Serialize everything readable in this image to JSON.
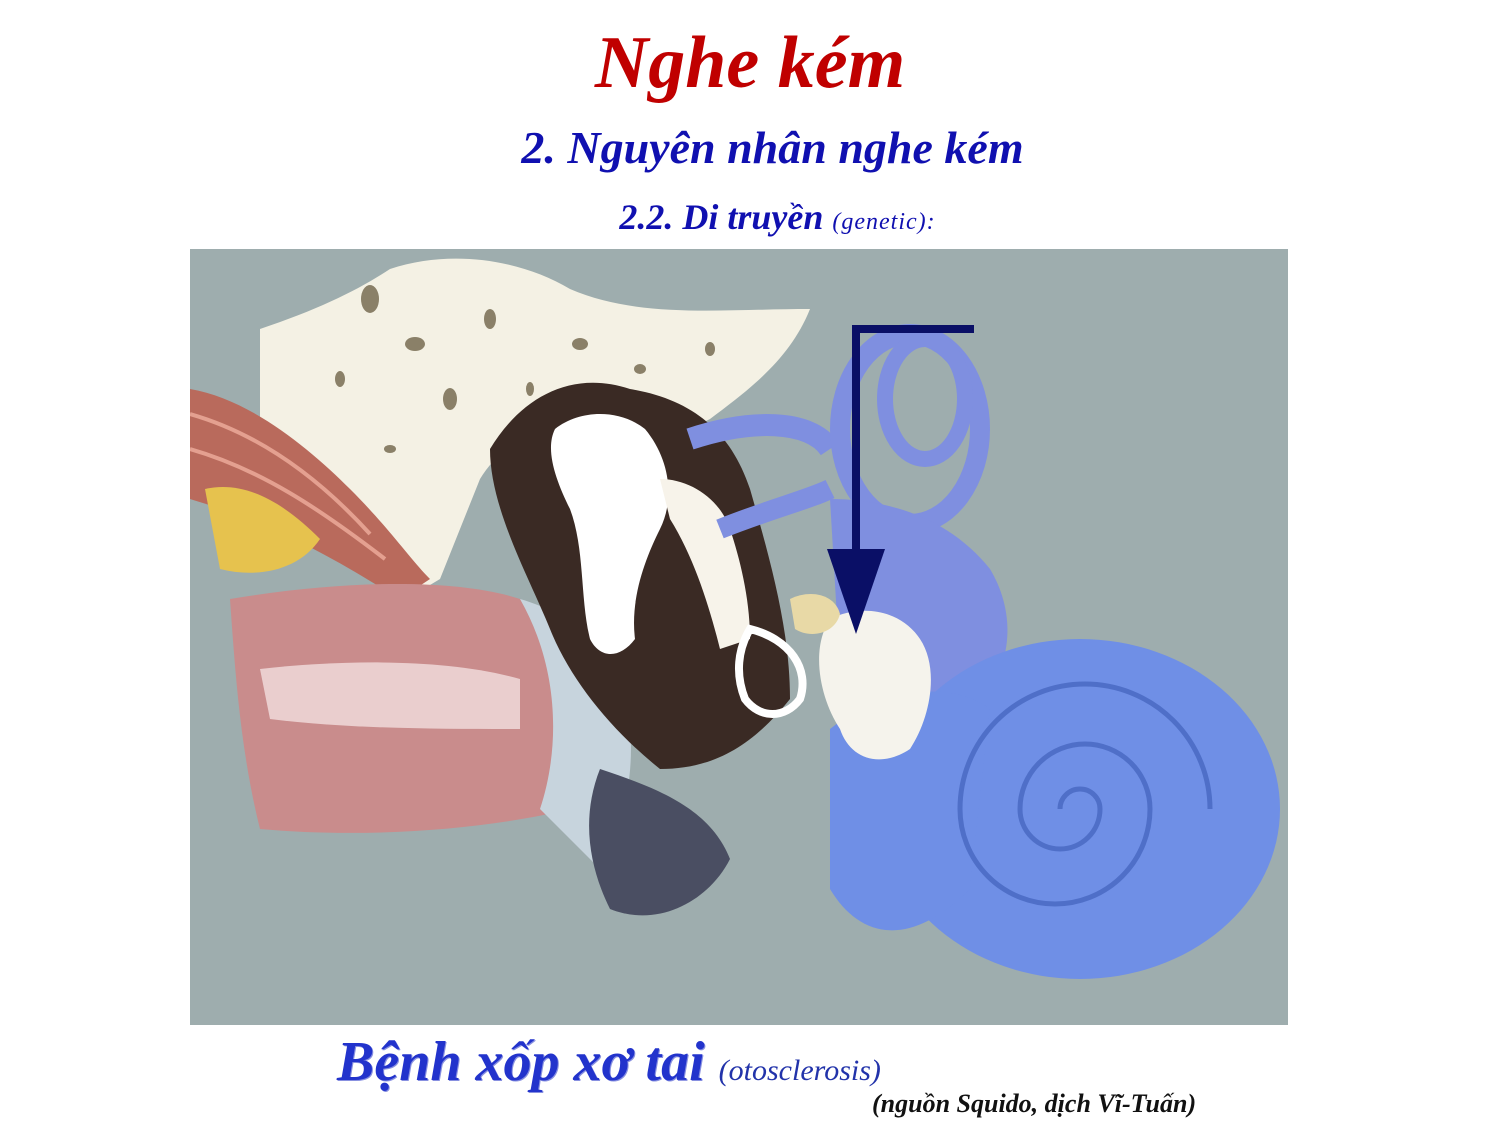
{
  "slide": {
    "title": "Nghe kém",
    "subtitle": "2. Nguyên nhân nghe kém",
    "section": "2.2. Di truyền",
    "section_note": "(genetic):"
  },
  "figure": {
    "icon": "ear-anatomy-illustration",
    "caption": "Bệnh xốp xơ tai",
    "caption_note": "(otosclerosis)",
    "credit": "(nguồn Squido, dịch Vĩ-Tuấn)",
    "colors": {
      "background": "#9eadae",
      "bone": "#f4f1e4",
      "cochlea": "#6f8fe6",
      "canals": "#7f8fe0",
      "arrow": "#0a0f66",
      "canal_wall": "#c98c8c"
    }
  }
}
